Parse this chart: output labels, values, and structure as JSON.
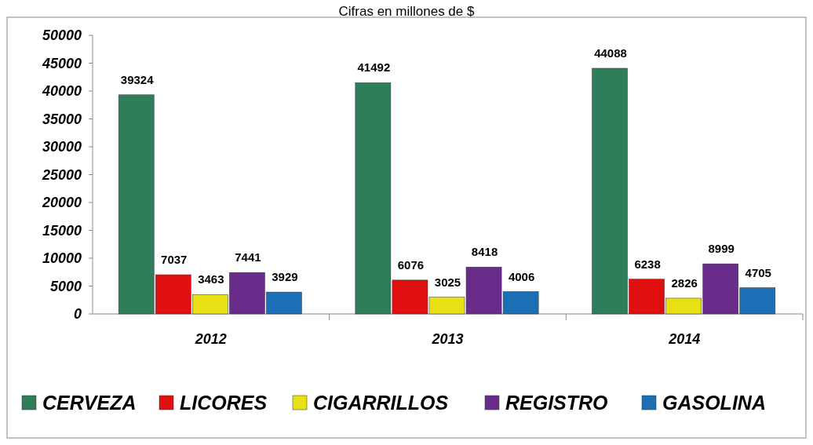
{
  "chart_data": {
    "type": "bar",
    "title": "Cifras en millones de $",
    "categories": [
      "2012",
      "2013",
      "2014"
    ],
    "series": [
      {
        "name": "CERVEZA",
        "color": "#2e7d5b",
        "values": [
          39324,
          41492,
          44088
        ]
      },
      {
        "name": "LICORES",
        "color": "#e01010",
        "values": [
          7037,
          6076,
          6238
        ]
      },
      {
        "name": "CIGARRILLOS",
        "color": "#e8e014",
        "values": [
          3463,
          3025,
          2826
        ]
      },
      {
        "name": "REGISTRO",
        "color": "#6a2c8a",
        "values": [
          7441,
          8418,
          8999
        ]
      },
      {
        "name": "GASOLINA",
        "color": "#1a6fb5",
        "values": [
          3929,
          4006,
          4705
        ]
      }
    ],
    "ylim": [
      0,
      50000
    ],
    "yticks": [
      0,
      5000,
      10000,
      15000,
      20000,
      25000,
      30000,
      35000,
      40000,
      45000,
      50000
    ],
    "data_labels": true,
    "grid": false,
    "legend": "bottom"
  }
}
